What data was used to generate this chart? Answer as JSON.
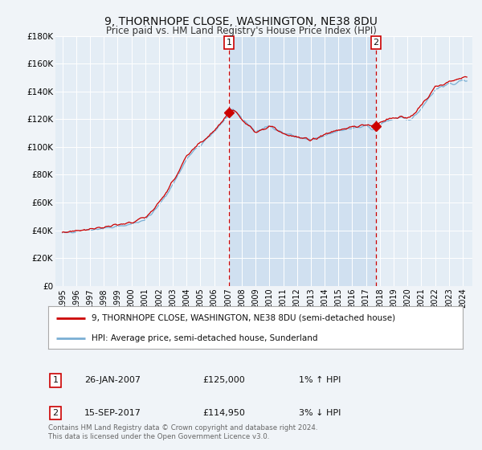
{
  "title": "9, THORNHOPE CLOSE, WASHINGTON, NE38 8DU",
  "subtitle": "Price paid vs. HM Land Registry's House Price Index (HPI)",
  "background_color": "#f0f4f8",
  "plot_bg_color": "#e4edf5",
  "shaded_region_color": "#d0e0f0",
  "hpi_color": "#7aafd4",
  "price_color": "#cc0000",
  "marker1_date_x": 2007.07,
  "marker2_date_x": 2017.71,
  "marker1_y": 125000,
  "marker2_y": 114950,
  "annotation1": {
    "num": "1",
    "date": "26-JAN-2007",
    "price": "£125,000",
    "hpi": "1% ↑ HPI"
  },
  "annotation2": {
    "num": "2",
    "date": "15-SEP-2017",
    "price": "£114,950",
    "hpi": "3% ↓ HPI"
  },
  "legend_line1": "9, THORNHOPE CLOSE, WASHINGTON, NE38 8DU (semi-detached house)",
  "legend_line2": "HPI: Average price, semi-detached house, Sunderland",
  "footer": "Contains HM Land Registry data © Crown copyright and database right 2024.\nThis data is licensed under the Open Government Licence v3.0.",
  "ylim": [
    0,
    180000
  ],
  "yticks": [
    0,
    20000,
    40000,
    60000,
    80000,
    100000,
    120000,
    140000,
    160000,
    180000
  ],
  "ytick_labels": [
    "£0",
    "£20K",
    "£40K",
    "£60K",
    "£80K",
    "£100K",
    "£120K",
    "£140K",
    "£160K",
    "£180K"
  ],
  "xlim_start": 1994.5,
  "xlim_end": 2024.7,
  "xticks": [
    1995,
    1996,
    1997,
    1998,
    1999,
    2000,
    2001,
    2002,
    2003,
    2004,
    2005,
    2006,
    2007,
    2008,
    2009,
    2010,
    2011,
    2012,
    2013,
    2014,
    2015,
    2016,
    2017,
    2018,
    2019,
    2020,
    2021,
    2022,
    2023,
    2024
  ]
}
